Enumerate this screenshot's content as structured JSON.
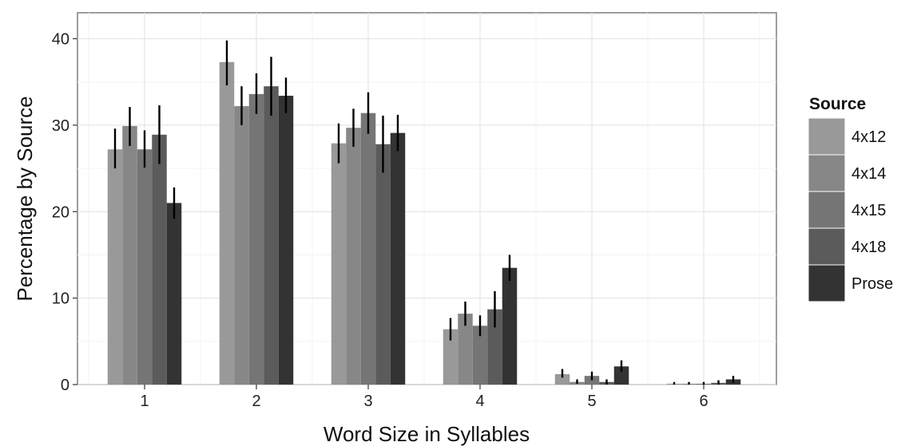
{
  "chart_data": {
    "type": "bar",
    "xlabel": "Word Size in Syllables",
    "ylabel": "Percentage by Source",
    "categories": [
      "1",
      "2",
      "3",
      "4",
      "5",
      "6"
    ],
    "ylim": [
      0,
      43
    ],
    "yticks": [
      0,
      10,
      20,
      30,
      40
    ],
    "grid": true,
    "legend": {
      "title": "Source",
      "position": "right"
    },
    "series": [
      {
        "name": "4x12",
        "color": "#999999",
        "values": [
          27.2,
          37.3,
          27.9,
          6.4,
          1.2,
          0.1
        ],
        "err_low": [
          25.0,
          34.6,
          25.6,
          5.1,
          0.8,
          0.0
        ],
        "err_high": [
          29.6,
          39.8,
          30.2,
          7.7,
          1.8,
          0.3
        ]
      },
      {
        "name": "4x14",
        "color": "#878787",
        "values": [
          29.9,
          32.2,
          29.7,
          8.2,
          0.3,
          0.1
        ],
        "err_low": [
          27.6,
          30.0,
          27.5,
          6.8,
          0.1,
          0.0
        ],
        "err_high": [
          32.1,
          34.5,
          31.9,
          9.6,
          0.6,
          0.3
        ]
      },
      {
        "name": "4x15",
        "color": "#757575",
        "values": [
          27.2,
          33.6,
          31.4,
          6.8,
          1.0,
          0.1
        ],
        "err_low": [
          25.1,
          31.3,
          29.0,
          5.6,
          0.5,
          0.0
        ],
        "err_high": [
          29.4,
          36.0,
          33.8,
          8.0,
          1.5,
          0.3
        ]
      },
      {
        "name": "4x18",
        "color": "#5b5b5b",
        "values": [
          28.9,
          34.5,
          27.8,
          8.7,
          0.3,
          0.2
        ],
        "err_low": [
          25.5,
          31.1,
          24.5,
          6.6,
          0.0,
          0.0
        ],
        "err_high": [
          32.3,
          37.9,
          31.1,
          10.8,
          0.6,
          0.5
        ]
      },
      {
        "name": "Prose",
        "color": "#333333",
        "values": [
          21.0,
          33.4,
          29.1,
          13.5,
          2.1,
          0.6
        ],
        "err_low": [
          19.2,
          31.4,
          27.0,
          12.0,
          1.5,
          0.2
        ],
        "err_high": [
          22.8,
          35.5,
          31.2,
          15.0,
          2.8,
          1.0
        ]
      }
    ]
  }
}
